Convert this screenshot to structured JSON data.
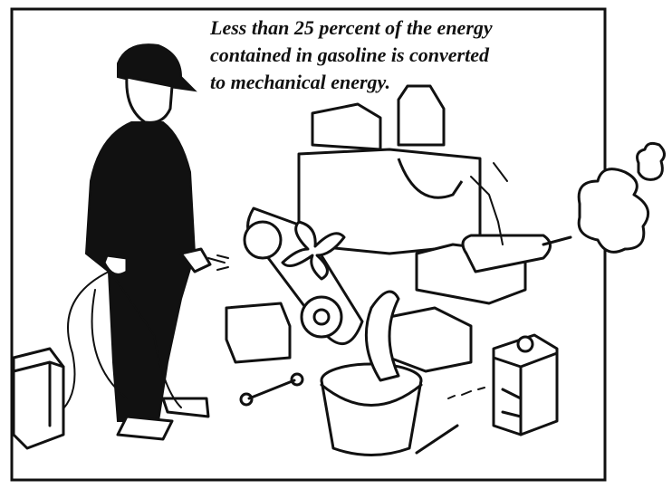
{
  "illustration": {
    "caption": [
      "Less than 25 percent of the energy",
      "contained in gasoline is converted",
      "to mechanical energy."
    ]
  }
}
